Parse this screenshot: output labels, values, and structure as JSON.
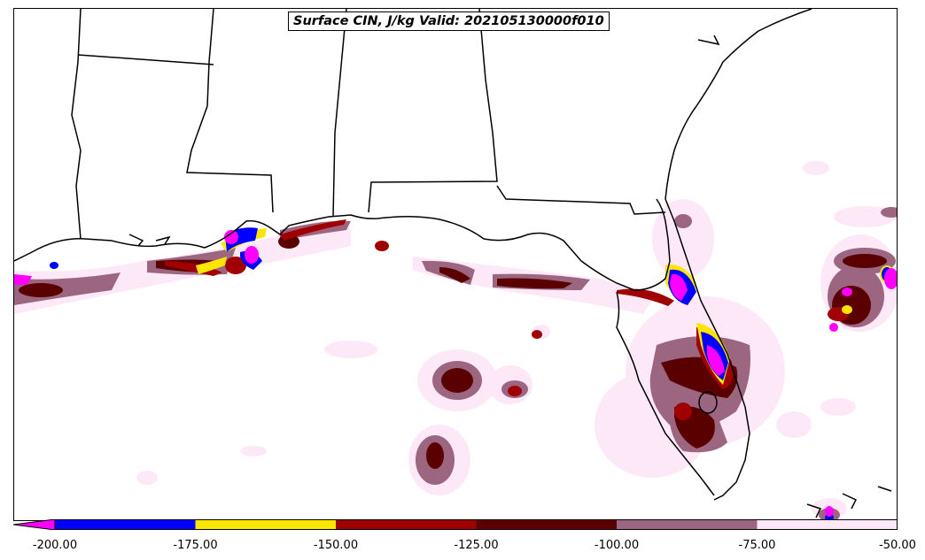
{
  "title": "Surface CIN, J/kg Valid: 202105130000f010",
  "colorbar": {
    "bins": [
      {
        "from": -200,
        "to": -175,
        "color": "#0000ff"
      },
      {
        "from": -175,
        "to": -150,
        "color": "#ffe600"
      },
      {
        "from": -150,
        "to": -125,
        "color": "#a00000"
      },
      {
        "from": -125,
        "to": -100,
        "color": "#5a0000"
      },
      {
        "from": -100,
        "to": -75,
        "color": "#9c6680"
      },
      {
        "from": -75,
        "to": -50,
        "color": "#fde8f8"
      }
    ],
    "extend_below_color": "#ff00ff",
    "ticks": [
      "-200.00",
      "-175.00",
      "-150.00",
      "-125.00",
      "-100.00",
      "-75.00",
      "-50.00"
    ]
  },
  "colors": {
    "magenta": "#ff00ff",
    "blue": "#0000ff",
    "yellow": "#ffe600",
    "red": "#a00000",
    "darkred": "#5a0000",
    "mauve": "#9c6680",
    "pink": "#fde8f8",
    "coast": "#000000"
  }
}
